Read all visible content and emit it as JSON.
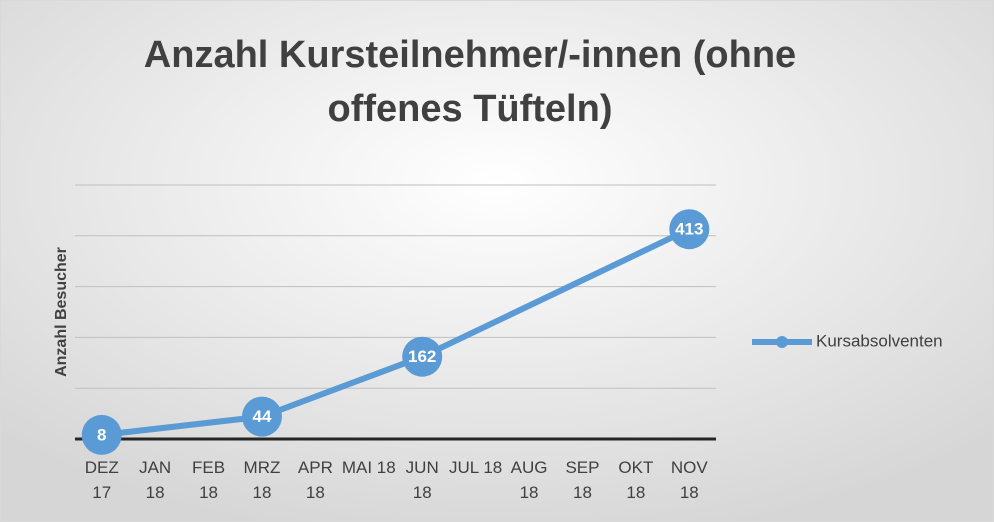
{
  "chart_data": {
    "type": "line",
    "title": "Anzahl Kursteilnehmer/-innen (ohne offenes Tüfteln)",
    "y_label": "Anzahl Besucher",
    "categories": [
      "DEZ 17",
      "JAN 18",
      "FEB 18",
      "MRZ 18",
      "APR 18",
      "MAI 18",
      "JUN 18",
      "JUL 18",
      "AUG 18",
      "SEP 18",
      "OKT 18",
      "NOV 18"
    ],
    "series": [
      {
        "name": "Kursabsolventen",
        "color": "#5b9bd5",
        "values": [
          8,
          null,
          null,
          44,
          null,
          null,
          162,
          null,
          null,
          null,
          null,
          413
        ]
      }
    ],
    "connect_gaps": true,
    "ylim": [
      0,
      500
    ],
    "yticks": [
      0,
      100,
      200,
      300,
      400,
      500
    ],
    "grid": true,
    "legend": "right"
  }
}
